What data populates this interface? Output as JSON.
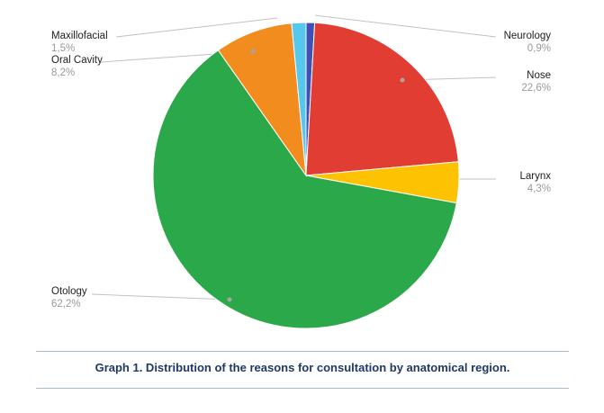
{
  "chart_data": {
    "type": "pie",
    "title": "",
    "start_angle_deg": 0,
    "direction": "clockwise",
    "legend_position": "none",
    "slices": [
      {
        "label": "Neurology",
        "value": 0.9,
        "pct_label": "0,9%",
        "color": "#3f51b5"
      },
      {
        "label": "Nose",
        "value": 22.6,
        "pct_label": "22,6%",
        "color": "#e23d32"
      },
      {
        "label": "Larynx",
        "value": 4.3,
        "pct_label": "4,3%",
        "color": "#fdc202"
      },
      {
        "label": "Otology",
        "value": 62.2,
        "pct_label": "62,2%",
        "color": "#2ba84a"
      },
      {
        "label": "Oral Cavity",
        "value": 8.2,
        "pct_label": "8,2%",
        "color": "#f28c1e"
      },
      {
        "label": "Maxillofacial",
        "value": 1.5,
        "pct_label": "1,5%",
        "color": "#57c7ec"
      }
    ]
  },
  "caption": "Graph 1. Distribution of the reasons for consultation by anatomical region.",
  "colors": {
    "caption_text": "#1f3864",
    "label_text": "#212121",
    "pct_text": "#9a9a9a",
    "leader_line": "#c2c2c2",
    "anchor_dot": "#a6a6a6",
    "rule": "#a9bcd9",
    "slice_stroke": "#ffffff"
  }
}
